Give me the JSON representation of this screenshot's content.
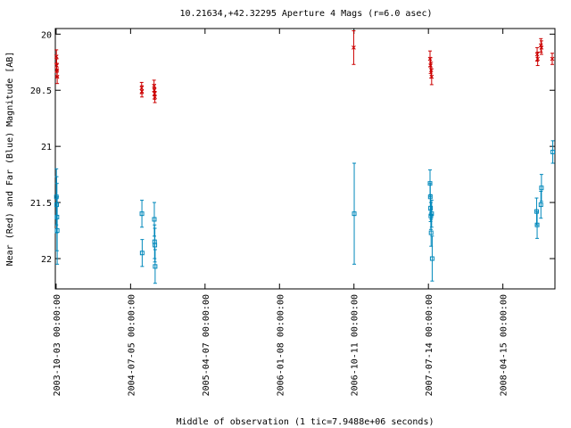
{
  "chart_data": {
    "type": "scatter",
    "title": "10.21634,+42.32295   Aperture 4 Mags (r=6.0 asec)",
    "xlabel": "Middle of observation (1 tic=7.9488e+06 seconds)",
    "ylabel": "Near (Red) and Far (Blue) Magnitude [AB]",
    "x_ticks": [
      "2003-10-03 00:00:00",
      "2004-07-05 00:00:00",
      "2005-04-07 00:00:00",
      "2006-01-08 00:00:00",
      "2006-10-11 00:00:00",
      "2007-07-14 00:00:00",
      "2008-04-15 00:00:00"
    ],
    "y_ticks": [
      "20",
      "20.5",
      "21",
      "21.5",
      "22"
    ],
    "ylim": [
      22.27,
      19.95
    ],
    "y_inverted": true,
    "xlim": [
      "2003-09-30",
      "2008-10-25"
    ],
    "grid": false,
    "legend": "none",
    "series": [
      {
        "color": "#cc0000",
        "marker": "x",
        "points": [
          {
            "x": "2003-10-04",
            "y": 20.2,
            "err": 0.06
          },
          {
            "x": "2003-10-05",
            "y": 20.28,
            "err": 0.06
          },
          {
            "x": "2003-10-06",
            "y": 20.32,
            "err": 0.06
          },
          {
            "x": "2003-10-07",
            "y": 20.38,
            "err": 0.06
          },
          {
            "x": "2004-08-15",
            "y": 20.48,
            "err": 0.05
          },
          {
            "x": "2004-08-16",
            "y": 20.51,
            "err": 0.05
          },
          {
            "x": "2004-09-30",
            "y": 20.46,
            "err": 0.05
          },
          {
            "x": "2004-10-01",
            "y": 20.5,
            "err": 0.05
          },
          {
            "x": "2004-10-02",
            "y": 20.53,
            "err": 0.05
          },
          {
            "x": "2004-10-03",
            "y": 20.56,
            "err": 0.05
          },
          {
            "x": "2006-10-10",
            "y": 20.12,
            "err": 0.15
          },
          {
            "x": "2007-07-20",
            "y": 20.22,
            "err": 0.07
          },
          {
            "x": "2007-07-22",
            "y": 20.28,
            "err": 0.07
          },
          {
            "x": "2007-07-24",
            "y": 20.32,
            "err": 0.07
          },
          {
            "x": "2007-07-26",
            "y": 20.38,
            "err": 0.07
          },
          {
            "x": "2008-08-20",
            "y": 20.18,
            "err": 0.06
          },
          {
            "x": "2008-08-22",
            "y": 20.22,
            "err": 0.06
          },
          {
            "x": "2008-09-03",
            "y": 20.1,
            "err": 0.06
          },
          {
            "x": "2008-09-05",
            "y": 20.12,
            "err": 0.06
          },
          {
            "x": "2008-10-15",
            "y": 20.22,
            "err": 0.05
          }
        ]
      },
      {
        "color": "#0088bb",
        "marker": "square",
        "points": [
          {
            "x": "2003-10-04",
            "y": 21.45,
            "err": 0.25
          },
          {
            "x": "2003-10-05",
            "y": 21.52,
            "err": 0.25
          },
          {
            "x": "2003-10-06",
            "y": 21.63,
            "err": 0.3
          },
          {
            "x": "2003-10-07",
            "y": 21.75,
            "err": 0.3
          },
          {
            "x": "2004-08-16",
            "y": 21.6,
            "err": 0.12
          },
          {
            "x": "2004-08-17",
            "y": 21.95,
            "err": 0.12
          },
          {
            "x": "2004-10-01",
            "y": 21.65,
            "err": 0.15
          },
          {
            "x": "2004-10-02",
            "y": 21.85,
            "err": 0.15
          },
          {
            "x": "2004-10-03",
            "y": 21.88,
            "err": 0.15
          },
          {
            "x": "2004-10-04",
            "y": 22.07,
            "err": 0.15
          },
          {
            "x": "2006-10-12",
            "y": 21.6,
            "err": 0.45
          },
          {
            "x": "2007-07-20",
            "y": 21.33,
            "err": 0.12
          },
          {
            "x": "2007-07-21",
            "y": 21.45,
            "err": 0.12
          },
          {
            "x": "2007-07-22",
            "y": 21.55,
            "err": 0.12
          },
          {
            "x": "2007-07-23",
            "y": 21.62,
            "err": 0.12
          },
          {
            "x": "2007-07-24",
            "y": 21.77,
            "err": 0.12
          },
          {
            "x": "2007-07-26",
            "y": 21.6,
            "err": 0.12
          },
          {
            "x": "2007-07-28",
            "y": 22.0,
            "err": 0.2
          },
          {
            "x": "2008-08-18",
            "y": 21.58,
            "err": 0.12
          },
          {
            "x": "2008-08-20",
            "y": 21.7,
            "err": 0.12
          },
          {
            "x": "2008-09-03",
            "y": 21.52,
            "err": 0.12
          },
          {
            "x": "2008-09-05",
            "y": 21.37,
            "err": 0.12
          },
          {
            "x": "2008-10-17",
            "y": 21.05,
            "err": 0.1
          }
        ]
      }
    ]
  }
}
